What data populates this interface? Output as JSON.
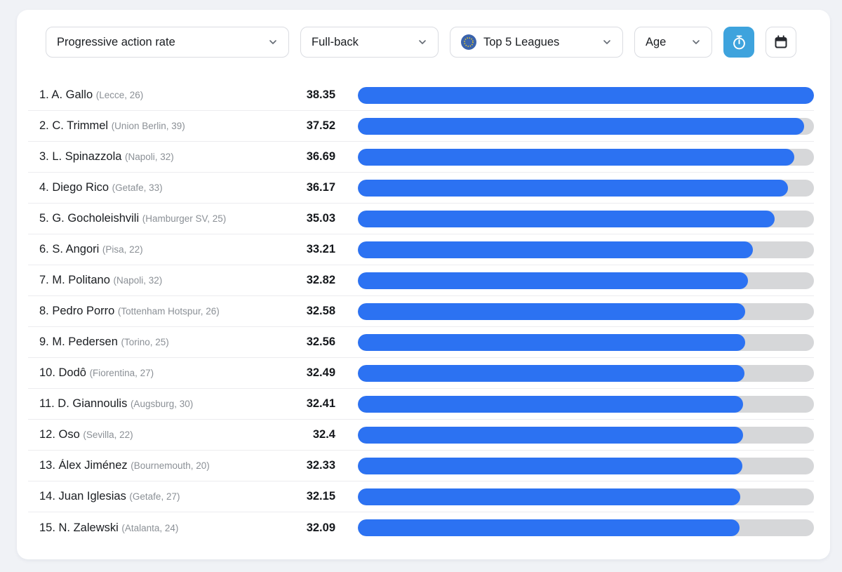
{
  "toolbar": {
    "metric_dropdown": {
      "label": "Progressive action rate"
    },
    "position_dropdown": {
      "label": "Full-back"
    },
    "league_dropdown": {
      "label": "Top 5 Leagues"
    },
    "age_dropdown": {
      "label": "Age"
    },
    "icons": [
      "eu-flag-icon",
      "chevron-down-icon",
      "stopwatch-icon",
      "calendar-icon"
    ]
  },
  "colors": {
    "bar_fill": "#2c72f2",
    "bar_track": "#d6d7d9",
    "timer_button": "#3ea3dd",
    "eu_flag_blue": "#3a63ac",
    "eu_flag_stars": "#ffd617",
    "page_background": "#f0f2f6"
  },
  "chart_data": {
    "type": "bar",
    "title": "Progressive action rate",
    "subtitle": "Full-back, Top 5 Leagues",
    "max_value": 38.35,
    "xlim": [
      0,
      38.35
    ],
    "players": [
      {
        "rank": 1,
        "name": "A. Gallo",
        "club": "Lecce",
        "age": 26,
        "value": "38.35"
      },
      {
        "rank": 2,
        "name": "C. Trimmel",
        "club": "Union Berlin",
        "age": 39,
        "value": "37.52"
      },
      {
        "rank": 3,
        "name": "L. Spinazzola",
        "club": "Napoli",
        "age": 32,
        "value": "36.69"
      },
      {
        "rank": 4,
        "name": "Diego Rico",
        "club": "Getafe",
        "age": 33,
        "value": "36.17"
      },
      {
        "rank": 5,
        "name": "G. Gocholeishvili",
        "club": "Hamburger SV",
        "age": 25,
        "value": "35.03"
      },
      {
        "rank": 6,
        "name": "S. Angori",
        "club": "Pisa",
        "age": 22,
        "value": "33.21"
      },
      {
        "rank": 7,
        "name": "M. Politano",
        "club": "Napoli",
        "age": 32,
        "value": "32.82"
      },
      {
        "rank": 8,
        "name": "Pedro Porro",
        "club": "Tottenham Hotspur",
        "age": 26,
        "value": "32.58"
      },
      {
        "rank": 9,
        "name": "M. Pedersen",
        "club": "Torino",
        "age": 25,
        "value": "32.56"
      },
      {
        "rank": 10,
        "name": "Dodô",
        "club": "Fiorentina",
        "age": 27,
        "value": "32.49"
      },
      {
        "rank": 11,
        "name": "D. Giannoulis",
        "club": "Augsburg",
        "age": 30,
        "value": "32.41"
      },
      {
        "rank": 12,
        "name": "Oso",
        "club": "Sevilla",
        "age": 22,
        "value": "32.4"
      },
      {
        "rank": 13,
        "name": "Álex Jiménez",
        "club": "Bournemouth",
        "age": 20,
        "value": "32.33"
      },
      {
        "rank": 14,
        "name": "Juan Iglesias",
        "club": "Getafe",
        "age": 27,
        "value": "32.15"
      },
      {
        "rank": 15,
        "name": "N. Zalewski",
        "club": "Atalanta",
        "age": 24,
        "value": "32.09"
      }
    ]
  }
}
